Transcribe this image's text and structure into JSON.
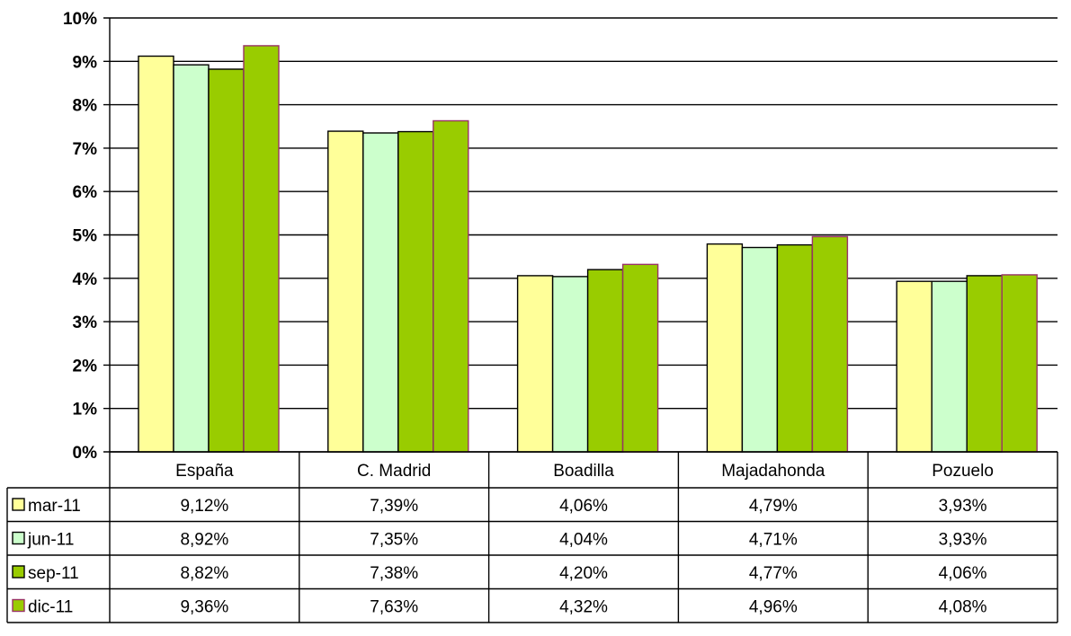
{
  "chart_data": {
    "type": "bar",
    "categories": [
      "España",
      "C. Madrid",
      "Boadilla",
      "Majadahonda",
      "Pozuelo"
    ],
    "series": [
      {
        "name": "mar-11",
        "color": "#FFFF99",
        "values": [
          9.12,
          7.39,
          4.06,
          4.79,
          3.93
        ],
        "labels": [
          "9,12%",
          "7,39%",
          "4,06%",
          "4,79%",
          "3,93%"
        ]
      },
      {
        "name": "jun-11",
        "color": "#CCFFCC",
        "values": [
          8.92,
          7.35,
          4.04,
          4.71,
          3.93
        ],
        "labels": [
          "8,92%",
          "7,35%",
          "4,04%",
          "4,71%",
          "3,93%"
        ]
      },
      {
        "name": "sep-11",
        "color": "#99CC00",
        "values": [
          8.82,
          7.38,
          4.2,
          4.77,
          4.06
        ],
        "labels": [
          "8,82%",
          "7,38%",
          "4,20%",
          "4,77%",
          "4,06%"
        ]
      },
      {
        "name": "dic-11",
        "color": "#99CC00",
        "border": "#993366",
        "values": [
          9.36,
          7.63,
          4.32,
          4.96,
          4.08
        ],
        "labels": [
          "9,36%",
          "7,63%",
          "4,32%",
          "4,96%",
          "4,08%"
        ]
      }
    ],
    "yticks": [
      "0%",
      "1%",
      "2%",
      "3%",
      "4%",
      "5%",
      "6%",
      "7%",
      "8%",
      "9%",
      "10%"
    ],
    "ylim": [
      0,
      10
    ],
    "grid": true,
    "legend": "data-table"
  }
}
